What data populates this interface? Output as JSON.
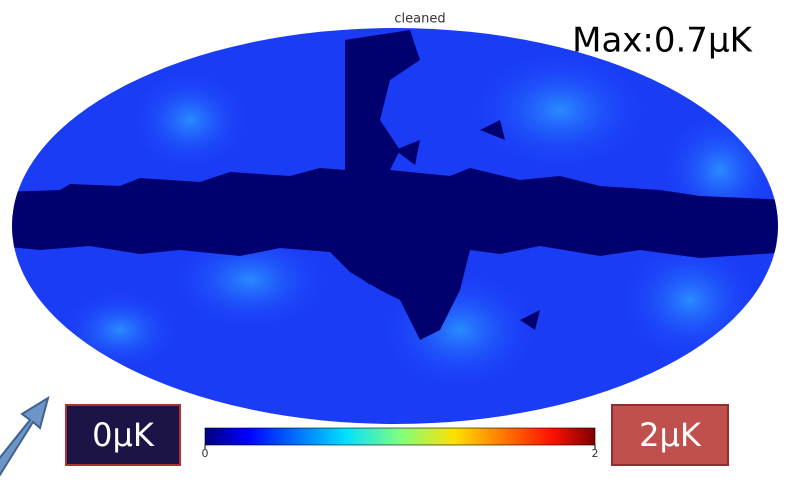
{
  "map": {
    "title": "cleaned",
    "annotation": "Max:0.7μK"
  },
  "colorbar": {
    "ticks": [
      0,
      2
    ],
    "min_label": "0μK",
    "max_label": "2μK"
  }
}
